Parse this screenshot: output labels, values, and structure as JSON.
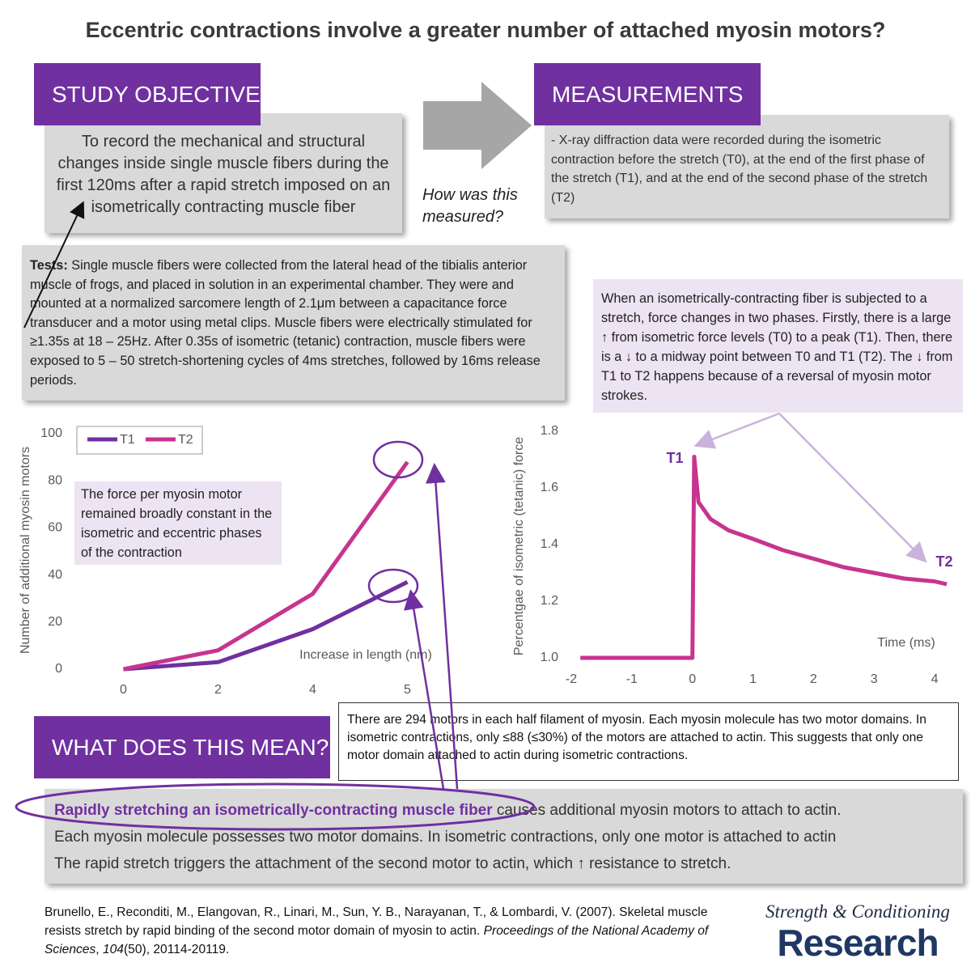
{
  "title": "Eccentric contractions involve a greater number of attached myosin motors?",
  "objective": {
    "header": "STUDY OBJECTIVE",
    "text": "To record the mechanical and structural changes inside single muscle fibers during the first 120ms after a rapid stretch imposed on an isometrically contracting muscle fiber"
  },
  "question": "How was this measured?",
  "measurements": {
    "header": "MEASUREMENTS",
    "text": "- X-ray diffraction data were recorded during the isometric contraction before the stretch (T0), at the end of the first phase of the stretch (T1), and at the end of the second phase of the stretch (T2)"
  },
  "tests": {
    "label": "Tests:",
    "text": "Single muscle fibers were collected from the lateral head of the tibialis anterior muscle of frogs, and placed in solution in an experimental chamber. They were and mounted at a normalized sarcomere length of 2.1μm between a capacitance force transducer and a motor using metal clips. Muscle fibers were electrically stimulated for ≥1.35s at 18 – 25Hz. After 0.35s of isometric (tetanic) contraction, muscle fibers were exposed to 5 – 50 stretch-shortening cycles of 4ms stretches, followed by 16ms release periods."
  },
  "force_note": "When an isometrically-contracting fiber is subjected to a stretch, force changes in two phases. Firstly, there is a large ↑ from isometric force levels (T0) to a peak (T1). Then, there is a ↓ to a midway point between T0 and T1 (T2). The ↓ from T1 to T2 happens because of a reversal of myosin motor strokes.",
  "chart_data": [
    {
      "type": "line",
      "y_label": "Number of additional myosin motors",
      "x_label": "Increase in length (nm)",
      "categories": [
        "0",
        "2",
        "4",
        "5"
      ],
      "series": [
        {
          "name": "T1",
          "color": "#7030a0",
          "values": [
            0,
            3,
            17,
            37
          ]
        },
        {
          "name": "T2",
          "color": "#c7348f",
          "values": [
            0,
            8,
            32,
            88
          ]
        }
      ],
      "ylim": [
        0,
        100
      ],
      "yticks": [
        0,
        20,
        40,
        60,
        80,
        100
      ],
      "grid": false,
      "legend": "top-left",
      "annotation": "The force per myosin motor remained broadly constant in the isometric and eccentric phases of the contraction"
    },
    {
      "type": "line",
      "y_label": "Percentgae of isometric (tetanic) force",
      "x_label": "Time (ms)",
      "x": [
        -1.85,
        0,
        0.03,
        0.1,
        0.3,
        0.6,
        1,
        1.5,
        2,
        2.5,
        3,
        3.5,
        4,
        4.2
      ],
      "series": [
        {
          "color": "#c7348f",
          "values": [
            1.0,
            1.0,
            1.71,
            1.55,
            1.49,
            1.45,
            1.42,
            1.38,
            1.35,
            1.32,
            1.3,
            1.28,
            1.27,
            1.26
          ]
        }
      ],
      "xlim": [
        -2,
        4.2
      ],
      "xticks": [
        -2,
        -1,
        0,
        1,
        2,
        3,
        4
      ],
      "ylim": [
        1.0,
        1.8
      ],
      "yticks": [
        {
          "value": 1.0,
          "label": "1.0"
        },
        1.2,
        1.4,
        1.6,
        1.8
      ],
      "grid": false,
      "annotations": [
        "T1",
        "T2"
      ]
    }
  ],
  "meaning": {
    "header": "WHAT DOES THIS MEAN?",
    "popup": "There are 294 motors in each half filament of myosin. Each myosin molecule has two motor domains. In isometric contractions, only ≤88 (≤30%) of the motors are attached to actin. This suggests that only one motor domain attached to actin during isometric contractions.",
    "highlight": "Rapidly stretching an isometrically-contracting muscle fiber",
    "lines": [
      " causes additional myosin motors to attach to actin.",
      "Each myosin molecule possesses two motor domains. In isometric contractions, only one motor is attached to actin",
      "The rapid stretch triggers the attachment of the second motor to actin, which ↑ resistance to stretch."
    ]
  },
  "citation": [
    "Brunello, E., Reconditi, M., Elangovan, R., Linari, M., Sun, Y. B., Narayanan, T., & Lombardi, V. (2007). Skeletal muscle resists stretch by rapid binding of the second motor domain of myosin to actin. ",
    "Proceedings of the National Academy of Sciences",
    ", ",
    "104",
    "(50), 20114-20119."
  ],
  "logo": {
    "top": "Strength & Conditioning",
    "bottom": "Research"
  }
}
